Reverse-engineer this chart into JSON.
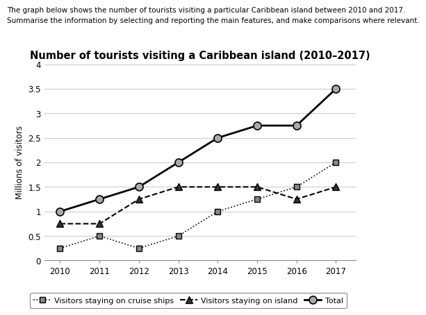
{
  "title": "Number of tourists visiting a Caribbean island (2010–2017)",
  "header_line1": "The graph below shows the number of tourists visiting a particular Caribbean island between 2010 and 2017.",
  "header_line2": "Summarise the information by selecting and reporting the main features, and make comparisons where relevant.",
  "ylabel": "Millions of visitors",
  "years": [
    2010,
    2011,
    2012,
    2013,
    2014,
    2015,
    2016,
    2017
  ],
  "cruise_ships": [
    0.25,
    0.5,
    0.25,
    0.5,
    1.0,
    1.25,
    1.5,
    2.0
  ],
  "island": [
    0.75,
    0.75,
    1.25,
    1.5,
    1.5,
    1.5,
    1.25,
    1.5
  ],
  "total": [
    1.0,
    1.25,
    1.5,
    2.0,
    2.5,
    2.75,
    2.75,
    3.5
  ],
  "ylim": [
    0,
    4
  ],
  "yticks": [
    0,
    0.5,
    1.0,
    1.5,
    2.0,
    2.5,
    3.0,
    3.5,
    4.0
  ],
  "line_color": "#000000",
  "total_marker_color": "#aaaaaa",
  "cruise_marker_color": "#888888",
  "island_marker_color": "#333333",
  "grid_color": "#cccccc",
  "legend_cruise_label": "Visitors staying on cruise ships",
  "legend_island_label": "Visitors staying on island",
  "legend_total_label": "Total",
  "header1_fontsize": 7.5,
  "header2_fontsize": 7.5,
  "title_fontsize": 10.5,
  "tick_fontsize": 8.5,
  "ylabel_fontsize": 8.5,
  "legend_fontsize": 8.0
}
